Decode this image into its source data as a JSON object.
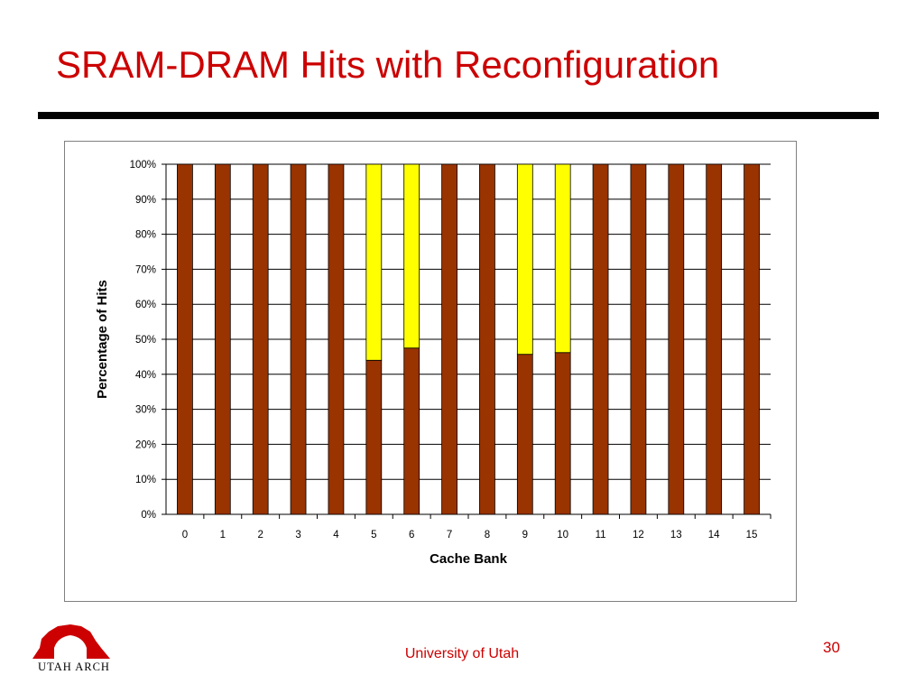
{
  "slide": {
    "title": "SRAM-DRAM Hits with Reconfiguration",
    "footer": "University of Utah",
    "page_number": "30",
    "logo_text": "UTAH ARCH",
    "colors": {
      "title": "#cc0000",
      "footer": "#cc0000",
      "rule": "#000000",
      "logo": "#cc0000"
    }
  },
  "chart_data": {
    "type": "bar",
    "stacked": true,
    "percent": true,
    "title": "",
    "xlabel": "Cache Bank",
    "ylabel": "Percentage of Hits",
    "categories": [
      "0",
      "1",
      "2",
      "3",
      "4",
      "5",
      "6",
      "7",
      "8",
      "9",
      "10",
      "11",
      "12",
      "13",
      "14",
      "15"
    ],
    "series": [
      {
        "color": "#993300",
        "values": [
          100,
          100,
          100,
          100,
          100,
          44,
          47.5,
          100,
          100,
          45.7,
          46.2,
          100,
          100,
          100,
          100,
          100
        ]
      },
      {
        "color": "#ffff00",
        "values": [
          0,
          0,
          0,
          0,
          0,
          56,
          52.5,
          0,
          0,
          54.3,
          53.8,
          0,
          0,
          0,
          0,
          0
        ]
      }
    ],
    "ylim": [
      0,
      100
    ],
    "yticks": [
      "0%",
      "10%",
      "20%",
      "30%",
      "40%",
      "50%",
      "60%",
      "70%",
      "80%",
      "90%",
      "100%"
    ],
    "grid": true,
    "legend": "none"
  }
}
